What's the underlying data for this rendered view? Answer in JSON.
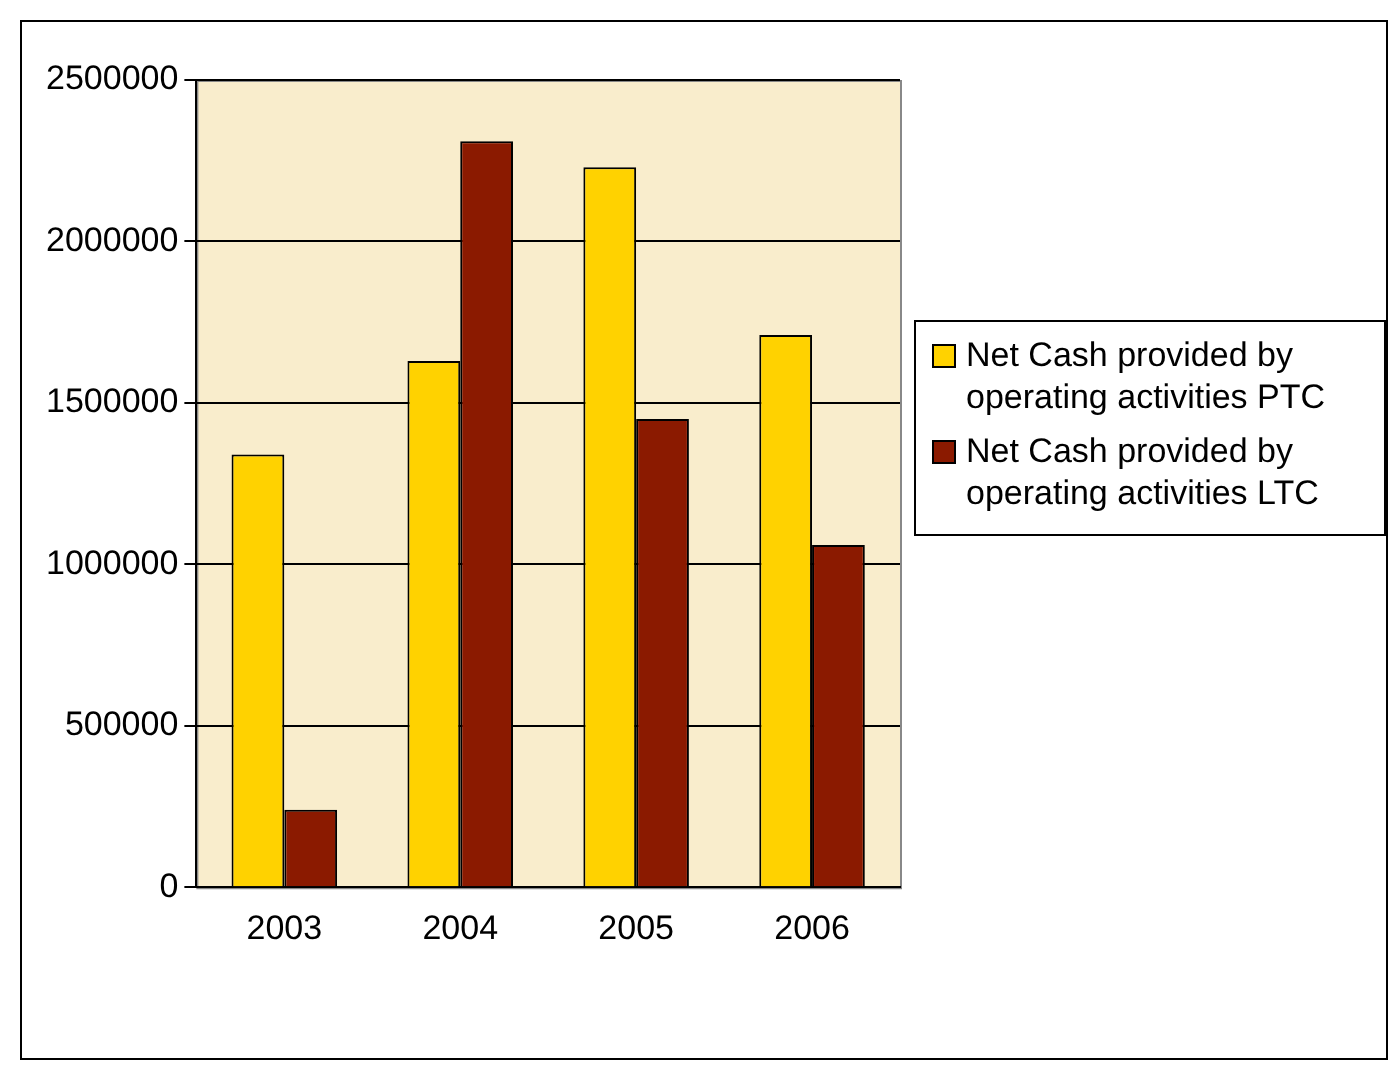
{
  "chart_data": {
    "type": "bar",
    "categories": [
      "2003",
      "2004",
      "2005",
      "2006"
    ],
    "series": [
      {
        "name": "Net Cash provided by operating activities PTC",
        "color": "#ffd200",
        "values": [
          1340000,
          1630000,
          2230000,
          1710000
        ]
      },
      {
        "name": "Net Cash provided by operating activities LTC",
        "color": "#8b1a00",
        "values": [
          240000,
          2310000,
          1450000,
          1060000
        ]
      }
    ],
    "ylim": [
      0,
      2500000
    ],
    "yticks": [
      0,
      500000,
      1000000,
      1500000,
      2000000,
      2500000
    ],
    "grid": "y",
    "legend": "right"
  }
}
